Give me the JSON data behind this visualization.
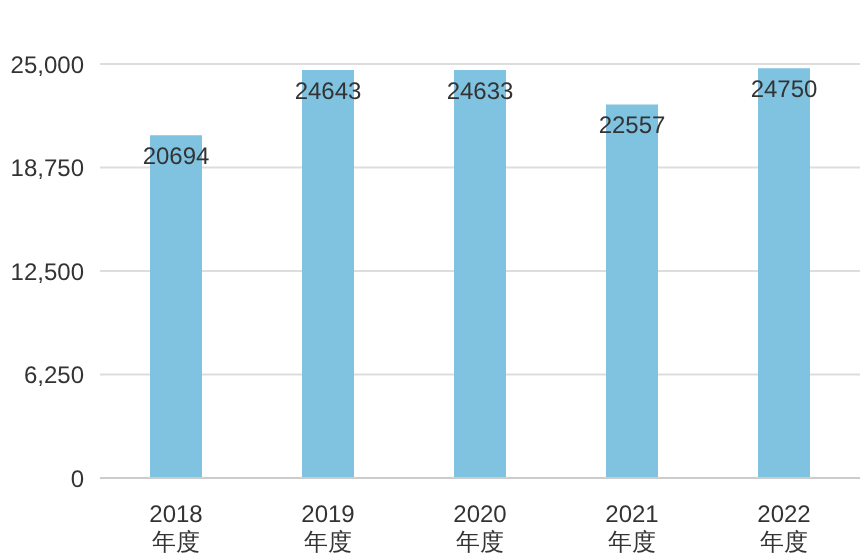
{
  "chart_data": {
    "type": "bar",
    "categories": [
      "2018\n年度",
      "2019\n年度",
      "2020\n年度",
      "2021\n年度",
      "2022\n年度"
    ],
    "values": [
      20694,
      24643,
      24633,
      22557,
      24750
    ],
    "color": "#7fc3e1",
    "ylim": [
      0,
      25000
    ],
    "yticks": [
      0,
      {
        "value": 6250,
        "label": "6,250"
      },
      {
        "value": 12500,
        "label": "12,500"
      },
      {
        "value": 18750,
        "label": "18,750"
      },
      {
        "value": 25000,
        "label": "25,000"
      }
    ],
    "grid": "y",
    "data_labels": true
  }
}
